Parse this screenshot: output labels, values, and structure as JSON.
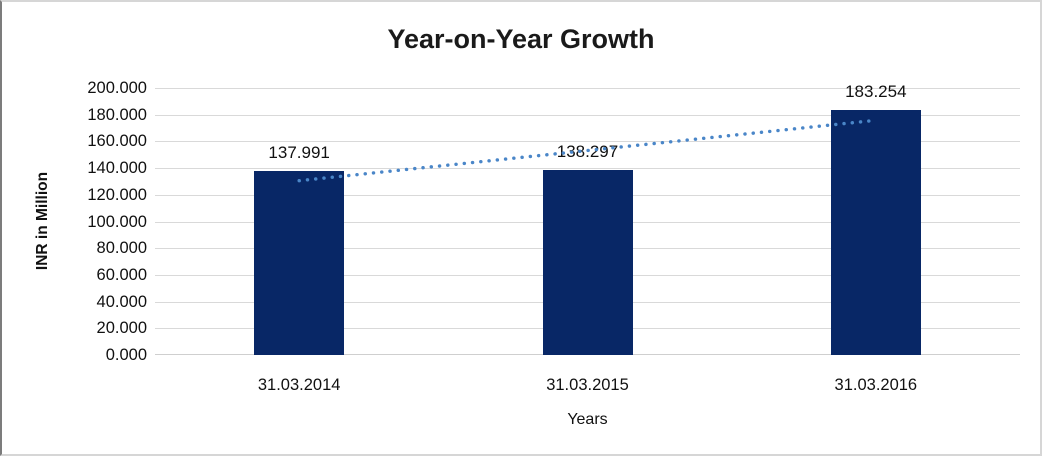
{
  "chart_data": {
    "type": "bar",
    "title": "Year-on-Year Growth",
    "categories": [
      "31.03.2014",
      "31.03.2015",
      "31.03.2016"
    ],
    "values": [
      137.991,
      138.297,
      183.254
    ],
    "data_labels": [
      "137.991",
      "138.297",
      "183.254"
    ],
    "xlabel": "Years",
    "ylabel": "INR in Million",
    "ylim": [
      0,
      200
    ],
    "ytick_step": 20,
    "ytick_labels": [
      "200.000",
      "180.000",
      "160.000",
      "140.000",
      "120.000",
      "100.000",
      "80.000",
      "60.000",
      "40.000",
      "20.000",
      "0.000"
    ],
    "grid": true,
    "legend": "none",
    "bar_color": "#082766",
    "trendline": {
      "type": "linear",
      "style": "dotted",
      "color": "#4a86c8"
    },
    "gridline_color": "#d9d9d9"
  }
}
